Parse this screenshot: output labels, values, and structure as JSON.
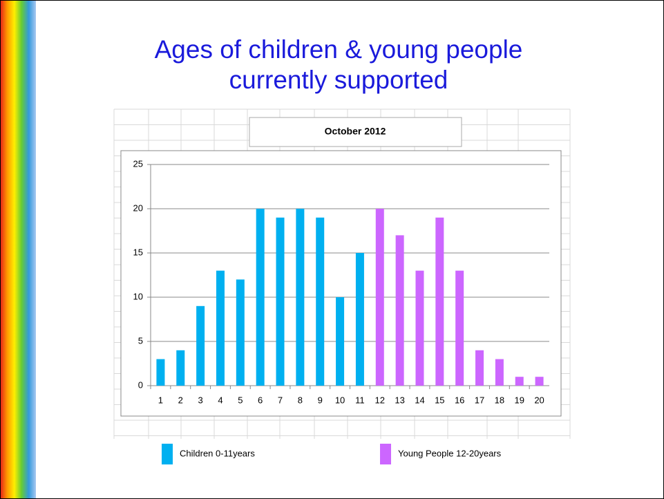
{
  "chart_data": {
    "type": "bar",
    "title": "Ages of children & young people currently supported",
    "subtitle": "October 2012",
    "categories": [
      "1",
      "2",
      "3",
      "4",
      "5",
      "6",
      "7",
      "8",
      "9",
      "10",
      "11",
      "12",
      "13",
      "14",
      "15",
      "16",
      "17",
      "18",
      "19",
      "20"
    ],
    "series": [
      {
        "name": "Children 0-11years",
        "color": "#00b0f0",
        "values": [
          3,
          4,
          9,
          13,
          12,
          20,
          19,
          20,
          19,
          10,
          15,
          null,
          null,
          null,
          null,
          null,
          null,
          null,
          null,
          null
        ]
      },
      {
        "name": "Young People 12-20years",
        "color": "#cc66ff",
        "values": [
          null,
          null,
          null,
          null,
          null,
          null,
          null,
          null,
          null,
          null,
          null,
          20,
          17,
          13,
          19,
          13,
          4,
          3,
          1,
          1
        ]
      }
    ],
    "ylim": [
      0,
      25
    ],
    "yticks": [
      0,
      5,
      10,
      15,
      20,
      25
    ],
    "grid": true
  }
}
